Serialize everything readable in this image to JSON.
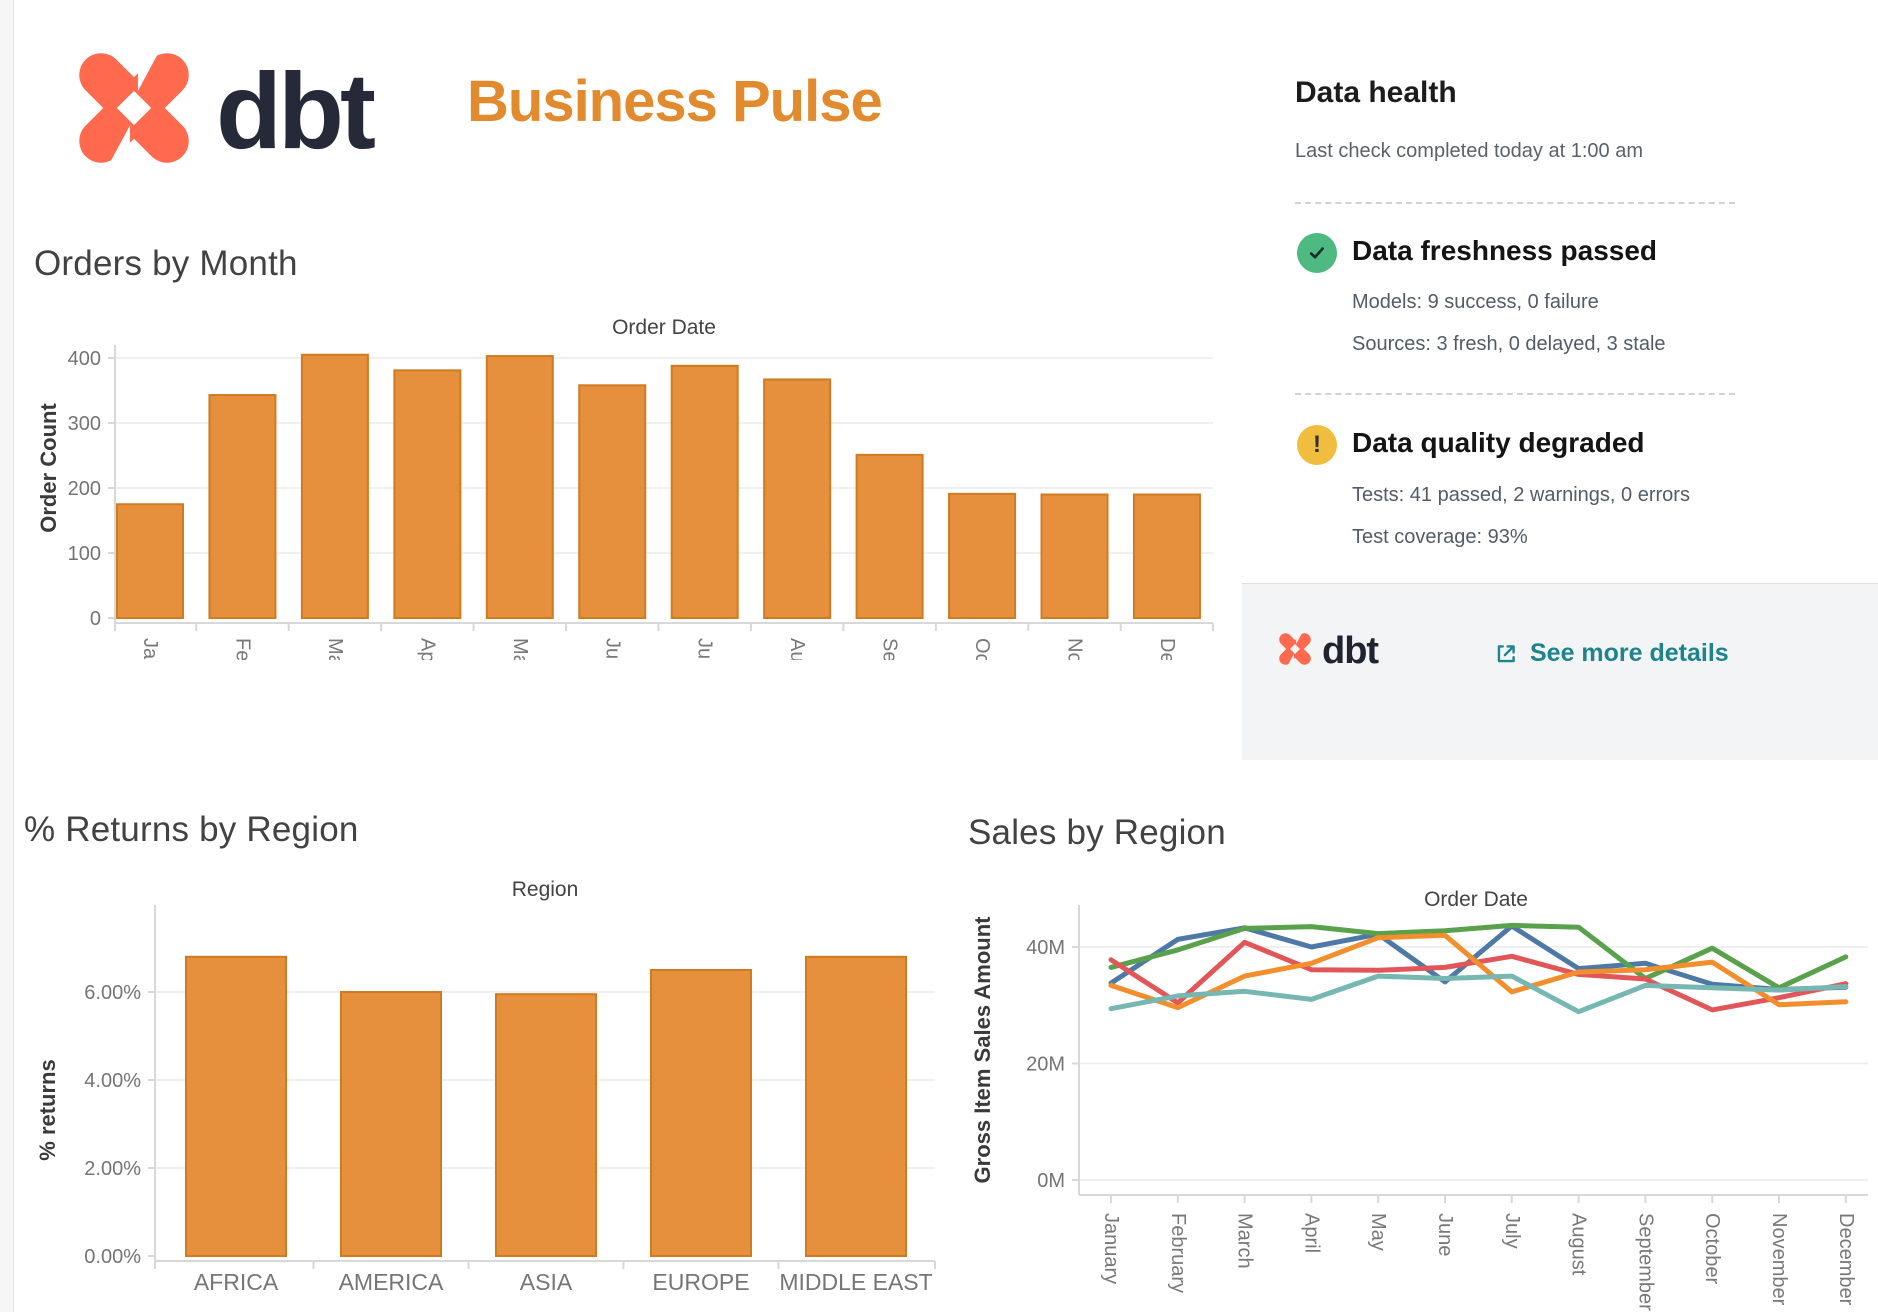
{
  "header": {
    "logo_text": "dbt",
    "title": "Business Pulse"
  },
  "data_health": {
    "title": "Data health",
    "subtitle": "Last check completed today at 1:00 am",
    "freshness": {
      "title": "Data freshness passed",
      "lines": [
        "Models: 9 success, 0 failure",
        "Sources: 3 fresh, 0 delayed, 3 stale"
      ]
    },
    "quality": {
      "title": "Data quality degraded",
      "lines": [
        "Tests: 41 passed, 2 warnings, 0 errors",
        "Test coverage: 93%"
      ]
    },
    "footer": {
      "logo_text": "dbt",
      "link_label": "See more details"
    }
  },
  "colors": {
    "logo_coral": "#ff694e",
    "logo_navy": "#262a38",
    "title_orange": "#e28a2e",
    "bar_fill": "#e68f3c",
    "bar_stroke": "#d07b20",
    "link_teal": "#1d838c",
    "pass_green": "#4eba81",
    "warn_yellow": "#f0bd3e"
  },
  "chart_data": [
    {
      "type": "bar",
      "title": "Orders by Month",
      "axis_title": "Order Date",
      "ylabel": "Order Count",
      "categories": [
        "January",
        "February",
        "March",
        "April",
        "May",
        "June",
        "July",
        "August",
        "September",
        "October",
        "November",
        "December"
      ],
      "values": [
        175,
        343,
        405,
        381,
        403,
        358,
        388,
        367,
        251,
        191,
        190,
        190
      ],
      "ytick_values": [
        0,
        100,
        200,
        300,
        400
      ],
      "ytick_labels": [
        "0",
        "100",
        "200",
        "300",
        "400"
      ],
      "ylim": [
        0,
        430
      ],
      "grid": true,
      "legend": "none"
    },
    {
      "type": "bar",
      "title": "% Returns by Region",
      "axis_title": "Region",
      "ylabel": "% returns",
      "categories": [
        "AFRICA",
        "AMERICA",
        "ASIA",
        "EUROPE",
        "MIDDLE EAST"
      ],
      "values": [
        6.8,
        6.0,
        5.95,
        6.5,
        6.8
      ],
      "ytick_values": [
        0,
        2,
        4,
        6
      ],
      "ytick_labels": [
        "0.00%",
        "2.00%",
        "4.00%",
        "6.00%"
      ],
      "ylim": [
        0,
        8
      ],
      "grid": true,
      "legend": "none"
    },
    {
      "type": "line",
      "title": "Sales by Region",
      "axis_title": "Order Date",
      "ylabel": "Gross Item Sales Amount",
      "x": [
        "January",
        "February",
        "March",
        "April",
        "May",
        "June",
        "July",
        "August",
        "September",
        "October",
        "November",
        "December"
      ],
      "series": [
        {
          "name": "blue",
          "color": "#4e79a7",
          "values": [
            33.8,
            41.3,
            43.3,
            40.0,
            42.2,
            34.0,
            43.6,
            36.3,
            37.2,
            33.6,
            32.7,
            33.1
          ]
        },
        {
          "name": "green",
          "color": "#59a14b",
          "values": [
            36.5,
            39.5,
            43.2,
            43.5,
            42.3,
            42.8,
            43.7,
            43.4,
            34.6,
            39.8,
            33.0,
            38.3
          ]
        },
        {
          "name": "red",
          "color": "#e15759",
          "values": [
            37.8,
            30.4,
            40.8,
            36.1,
            36.0,
            36.5,
            38.4,
            35.3,
            34.5,
            29.2,
            31.3,
            33.7
          ]
        },
        {
          "name": "orange",
          "color": "#f28e2b",
          "values": [
            33.4,
            29.6,
            35.0,
            37.2,
            41.6,
            42.0,
            32.3,
            35.7,
            36.1,
            37.4,
            30.1,
            30.6
          ]
        },
        {
          "name": "teal",
          "color": "#76b7b2",
          "values": [
            29.4,
            31.6,
            32.4,
            31.0,
            35.0,
            34.6,
            35.0,
            28.9,
            33.4,
            33.0,
            32.6,
            33.2
          ]
        }
      ],
      "ytick_values": [
        0,
        20,
        40
      ],
      "ytick_labels": [
        "0M",
        "20M",
        "40M"
      ],
      "ylim": [
        0,
        46
      ],
      "grid": true,
      "legend": "none",
      "units": "M"
    }
  ]
}
